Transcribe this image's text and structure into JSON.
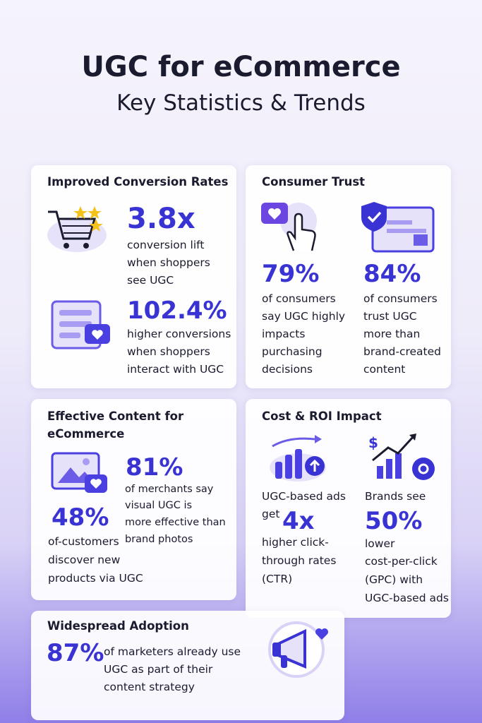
{
  "header": {
    "title": "UGC for eCommerce",
    "subtitle": "Key Statistics & Trends"
  },
  "cards": [
    {
      "title": "Improved Conversion Rates",
      "stats": [
        {
          "value": "3.8x",
          "lines": [
            "conversion lift",
            "when shoppers",
            "see UGC"
          ]
        },
        {
          "value": "102.4%",
          "lines": [
            "higher conversions",
            "when shoppers",
            "interact with UGC"
          ]
        }
      ]
    },
    {
      "title": "Consumer Trust",
      "stats": [
        {
          "value": "79%",
          "lines": [
            "of consumers",
            "say UGC highly",
            "impacts",
            "purchasing",
            "decisions"
          ]
        },
        {
          "value": "84%",
          "lines": [
            "of consumers",
            "trust UGC",
            "more than",
            "brand-created",
            "content"
          ]
        }
      ]
    },
    {
      "title": "Effective Content for eCommerce",
      "stats": [
        {
          "value": "81%",
          "lines": [
            "of merchants say",
            "visual UGC is",
            "more effective than",
            "brand photos"
          ]
        },
        {
          "value": "48%",
          "lines": [
            "of-customers",
            "discover new",
            "products via UGC"
          ]
        }
      ]
    },
    {
      "title": "Cost & ROI Impact",
      "stats": [
        {
          "lead": [
            "UGC-based ads",
            "get"
          ],
          "value": "4x",
          "lines": [
            "higher click-",
            "through rates",
            "(CTR)"
          ]
        },
        {
          "lead": [
            "Brands see"
          ],
          "value": "50%",
          "lines": [
            "lower",
            "cost-per-click",
            "(GPC) with",
            "UGC-based ads"
          ]
        }
      ]
    },
    {
      "title": "Widespread Adoption",
      "stats": [
        {
          "value": "87%",
          "lines": [
            "of marketers already use",
            "UGC as part of their",
            "content strategy"
          ]
        }
      ]
    }
  ]
}
